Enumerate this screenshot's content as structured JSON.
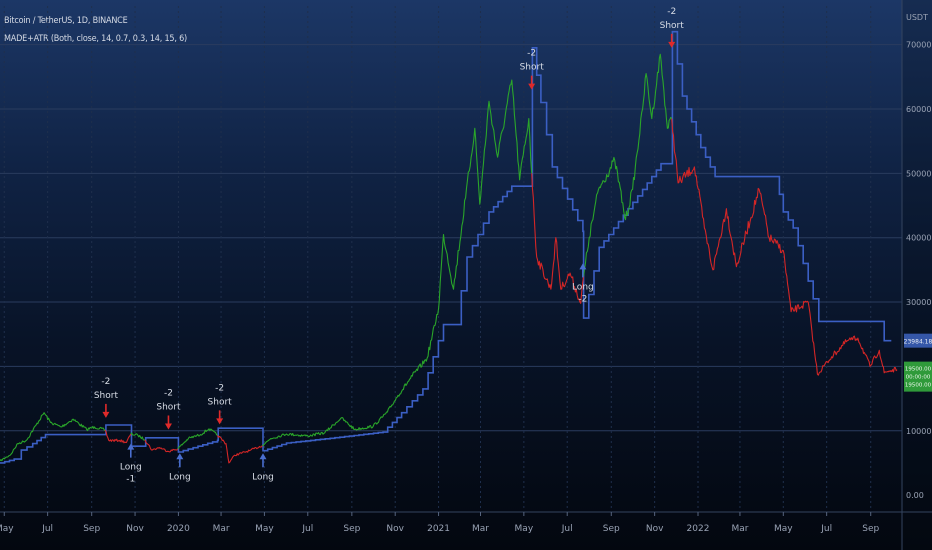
{
  "legend": {
    "symbol": "Bitcoin / TetherUS, 1D, BINANCE",
    "indicator": "MADE+ATR (Both, close, 14, 0.7, 0.3, 14, 15, 6)"
  },
  "colors": {
    "up": "#2aa52a",
    "down": "#d42626",
    "stop_line": "#3b5fc4",
    "price_badge": "#2f9a3a",
    "stop_badge": "#3557a8",
    "buy_arrow": "#4a6fd0",
    "sell_arrow": "#e02a2a",
    "grid": "#2a3c5e",
    "axis_text": "#9aa3b5"
  },
  "chart_data": {
    "type": "line",
    "xlabel": "",
    "ylabel": "",
    "y_unit": "USDT",
    "ylim": [
      -2000,
      76000
    ],
    "xlim": [
      "2019-04-25",
      "2022-10-15"
    ],
    "grid": true,
    "y_ticks": [
      0,
      10000,
      20000,
      30000,
      40000,
      50000,
      60000,
      70000
    ],
    "y_tick_labels": [
      "0.00",
      "10000.00",
      "",
      "30000.00",
      "40000.00",
      "50000.00",
      "60000.00",
      "70000.00"
    ],
    "x_ticks": [
      {
        "date": "2019-05-01",
        "label": "May"
      },
      {
        "date": "2019-07-01",
        "label": "Jul"
      },
      {
        "date": "2019-09-01",
        "label": "Sep"
      },
      {
        "date": "2019-11-01",
        "label": "Nov"
      },
      {
        "date": "2020-01-01",
        "label": "2020"
      },
      {
        "date": "2020-03-01",
        "label": "Mar"
      },
      {
        "date": "2020-05-01",
        "label": "May"
      },
      {
        "date": "2020-07-01",
        "label": "Jul"
      },
      {
        "date": "2020-09-01",
        "label": "Sep"
      },
      {
        "date": "2020-11-01",
        "label": "Nov"
      },
      {
        "date": "2021-01-01",
        "label": "2021"
      },
      {
        "date": "2021-03-01",
        "label": "Mar"
      },
      {
        "date": "2021-05-01",
        "label": "May"
      },
      {
        "date": "2021-07-01",
        "label": "Jul"
      },
      {
        "date": "2021-09-01",
        "label": "Sep"
      },
      {
        "date": "2021-11-01",
        "label": "Nov"
      },
      {
        "date": "2022-01-01",
        "label": "2022"
      },
      {
        "date": "2022-03-01",
        "label": "Mar"
      },
      {
        "date": "2022-05-01",
        "label": "May"
      },
      {
        "date": "2022-07-01",
        "label": "Jul"
      },
      {
        "date": "2022-09-01",
        "label": "Sep"
      }
    ],
    "price_segments": [
      {
        "trend": "up",
        "points": [
          [
            "2019-04-25",
            5300
          ],
          [
            "2019-05-10",
            6300
          ],
          [
            "2019-05-20",
            8000
          ],
          [
            "2019-06-01",
            8500
          ],
          [
            "2019-06-26",
            12800
          ],
          [
            "2019-07-05",
            11300
          ],
          [
            "2019-07-20",
            10600
          ],
          [
            "2019-08-06",
            11800
          ],
          [
            "2019-08-25",
            10200
          ],
          [
            "2019-09-05",
            10600
          ],
          [
            "2019-09-20",
            10100
          ]
        ]
      },
      {
        "trend": "down",
        "points": [
          [
            "2019-09-20",
            10100
          ],
          [
            "2019-09-25",
            8500
          ],
          [
            "2019-10-10",
            8500
          ],
          [
            "2019-10-20",
            8200
          ],
          [
            "2019-10-26",
            9500
          ]
        ]
      },
      {
        "trend": "up",
        "points": [
          [
            "2019-10-26",
            9500
          ],
          [
            "2019-11-05",
            9300
          ],
          [
            "2019-11-15",
            8600
          ]
        ]
      },
      {
        "trend": "down",
        "points": [
          [
            "2019-11-15",
            8600
          ],
          [
            "2019-11-25",
            7000
          ],
          [
            "2019-12-05",
            7400
          ],
          [
            "2019-12-18",
            6800
          ],
          [
            "2019-12-31",
            7200
          ]
        ]
      },
      {
        "trend": "up",
        "points": [
          [
            "2019-12-31",
            7200
          ],
          [
            "2020-01-15",
            8800
          ],
          [
            "2020-02-01",
            9400
          ],
          [
            "2020-02-13",
            10300
          ],
          [
            "2020-02-25",
            9300
          ]
        ]
      },
      {
        "trend": "down",
        "points": [
          [
            "2020-02-25",
            9300
          ],
          [
            "2020-03-08",
            8000
          ],
          [
            "2020-03-12",
            5000
          ],
          [
            "2020-03-20",
            6200
          ],
          [
            "2020-04-10",
            6900
          ],
          [
            "2020-04-28",
            7700
          ]
        ]
      },
      {
        "trend": "up",
        "points": [
          [
            "2020-04-28",
            7700
          ],
          [
            "2020-05-10",
            8800
          ],
          [
            "2020-06-01",
            9500
          ],
          [
            "2020-07-01",
            9200
          ],
          [
            "2020-07-25",
            9700
          ],
          [
            "2020-08-17",
            12000
          ],
          [
            "2020-09-05",
            10200
          ],
          [
            "2020-10-01",
            10700
          ],
          [
            "2020-10-21",
            12900
          ],
          [
            "2020-11-05",
            15500
          ],
          [
            "2020-11-25",
            18500
          ],
          [
            "2020-12-16",
            21300
          ],
          [
            "2021-01-01",
            29000
          ],
          [
            "2021-01-08",
            40500
          ],
          [
            "2021-01-22",
            32000
          ],
          [
            "2021-02-08",
            46200
          ],
          [
            "2021-02-21",
            57000
          ],
          [
            "2021-02-28",
            45200
          ],
          [
            "2021-03-13",
            61200
          ],
          [
            "2021-03-25",
            52500
          ],
          [
            "2021-04-14",
            64500
          ],
          [
            "2021-04-25",
            49000
          ],
          [
            "2021-05-08",
            58500
          ],
          [
            "2021-05-12",
            50000
          ]
        ]
      },
      {
        "trend": "down",
        "points": [
          [
            "2021-05-12",
            50000
          ],
          [
            "2021-05-19",
            37000
          ],
          [
            "2021-06-08",
            32000
          ],
          [
            "2021-06-15",
            40000
          ],
          [
            "2021-06-22",
            32000
          ],
          [
            "2021-07-05",
            34500
          ],
          [
            "2021-07-20",
            29800
          ],
          [
            "2021-07-24",
            34000
          ]
        ]
      },
      {
        "trend": "up",
        "points": [
          [
            "2021-07-24",
            34000
          ],
          [
            "2021-08-01",
            40000
          ],
          [
            "2021-08-14",
            47500
          ],
          [
            "2021-09-06",
            52000
          ],
          [
            "2021-09-21",
            42800
          ],
          [
            "2021-10-01",
            47500
          ],
          [
            "2021-10-15",
            60000
          ],
          [
            "2021-10-20",
            65500
          ],
          [
            "2021-10-28",
            58500
          ],
          [
            "2021-11-09",
            68500
          ],
          [
            "2021-11-19",
            57000
          ],
          [
            "2021-11-25",
            58500
          ]
        ]
      },
      {
        "trend": "down",
        "points": [
          [
            "2021-11-25",
            58500
          ],
          [
            "2021-12-04",
            48500
          ],
          [
            "2021-12-27",
            51000
          ],
          [
            "2022-01-10",
            41500
          ],
          [
            "2022-01-22",
            35000
          ],
          [
            "2022-02-10",
            44500
          ],
          [
            "2022-02-24",
            35500
          ],
          [
            "2022-03-28",
            47500
          ],
          [
            "2022-04-11",
            40000
          ],
          [
            "2022-05-01",
            38000
          ],
          [
            "2022-05-12",
            28500
          ],
          [
            "2022-06-05",
            30000
          ],
          [
            "2022-06-18",
            18800
          ],
          [
            "2022-07-08",
            21500
          ],
          [
            "2022-07-30",
            24000
          ],
          [
            "2022-08-14",
            24400
          ],
          [
            "2022-08-31",
            20000
          ],
          [
            "2022-09-13",
            22500
          ],
          [
            "2022-09-20",
            19000
          ],
          [
            "2022-09-27",
            19300
          ],
          [
            "2022-10-08",
            19500
          ]
        ]
      }
    ],
    "stop_line": [
      [
        "2019-04-25",
        5000
      ],
      [
        "2019-05-15",
        5600
      ],
      [
        "2019-05-25",
        7000
      ],
      [
        "2019-06-10",
        8000
      ],
      [
        "2019-06-28",
        9400
      ],
      [
        "2019-09-20",
        9400
      ],
      [
        "2019-09-21",
        10900
      ],
      [
        "2019-10-26",
        10900
      ],
      [
        "2019-10-27",
        7600
      ],
      [
        "2019-11-15",
        7600
      ],
      [
        "2019-11-16",
        8900
      ],
      [
        "2019-12-31",
        8900
      ],
      [
        "2020-01-01",
        6700
      ],
      [
        "2020-02-25",
        8500
      ],
      [
        "2020-02-26",
        10400
      ],
      [
        "2020-04-28",
        10400
      ],
      [
        "2020-04-29",
        6900
      ],
      [
        "2020-06-01",
        8100
      ],
      [
        "2020-08-15",
        9000
      ],
      [
        "2020-10-15",
        9800
      ],
      [
        "2020-11-10",
        12800
      ],
      [
        "2020-12-10",
        16500
      ],
      [
        "2021-01-08",
        26500
      ],
      [
        "2021-01-25",
        26500
      ],
      [
        "2021-02-10",
        37000
      ],
      [
        "2021-03-13",
        44000
      ],
      [
        "2021-04-14",
        48000
      ],
      [
        "2021-05-12",
        48000
      ],
      [
        "2021-05-13",
        69500
      ],
      [
        "2021-05-25",
        61000
      ],
      [
        "2021-06-10",
        51000
      ],
      [
        "2021-07-23",
        41000
      ],
      [
        "2021-07-24",
        27500
      ],
      [
        "2021-08-15",
        38500
      ],
      [
        "2021-10-15",
        47500
      ],
      [
        "2021-11-10",
        51500
      ],
      [
        "2021-11-25",
        51500
      ],
      [
        "2021-11-26",
        72000
      ],
      [
        "2021-12-10",
        62000
      ],
      [
        "2022-01-05",
        54000
      ],
      [
        "2022-01-25",
        49500
      ],
      [
        "2022-04-20",
        49500
      ],
      [
        "2022-05-01",
        44000
      ],
      [
        "2022-05-15",
        41500
      ],
      [
        "2022-06-12",
        30500
      ],
      [
        "2022-06-20",
        27000
      ],
      [
        "2022-09-15",
        27000
      ],
      [
        "2022-09-20",
        24000
      ],
      [
        "2022-09-30",
        24000
      ]
    ],
    "signals": [
      {
        "type": "short",
        "date": "2019-09-21",
        "price": 12000,
        "label": "Short",
        "value": "-2"
      },
      {
        "type": "long",
        "date": "2019-10-26",
        "price": 8000,
        "label": "Long",
        "value": "-1"
      },
      {
        "type": "short",
        "date": "2019-12-18",
        "price": 10200,
        "label": "Short",
        "value": "-2"
      },
      {
        "type": "long",
        "date": "2020-01-03",
        "price": 6500,
        "label": "Long",
        "value": ""
      },
      {
        "type": "short",
        "date": "2020-02-28",
        "price": 11000,
        "label": "Short",
        "value": "-2"
      },
      {
        "type": "long",
        "date": "2020-04-29",
        "price": 6500,
        "label": "Long",
        "value": ""
      },
      {
        "type": "short",
        "date": "2021-05-12",
        "price": 63000,
        "label": "Short",
        "value": "-2"
      },
      {
        "type": "long",
        "date": "2021-07-23",
        "price": 36000,
        "label": "Long",
        "value": "-2"
      },
      {
        "type": "short",
        "date": "2021-11-25",
        "price": 69500,
        "label": "Short",
        "value": "-2"
      }
    ],
    "price_badge": {
      "value": 19500,
      "lines": [
        "19500.00",
        "00:00:00",
        "19500.00"
      ]
    },
    "stop_badge": {
      "value": 24000,
      "lines": [
        "23984.18"
      ]
    }
  }
}
